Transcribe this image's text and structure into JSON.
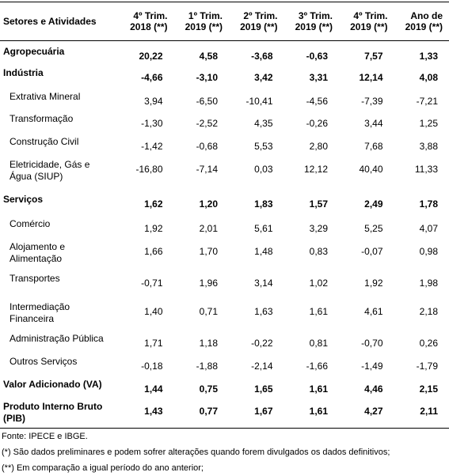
{
  "table": {
    "header": [
      {
        "lines": [
          "Setores e Atividades"
        ]
      },
      {
        "lines": [
          "4º Trim.",
          "2018 (**)"
        ]
      },
      {
        "lines": [
          "1º Trim.",
          "2019 (**)"
        ]
      },
      {
        "lines": [
          "2º Trim.",
          "2019 (**)"
        ]
      },
      {
        "lines": [
          "3º Trim.",
          "2019 (**)"
        ]
      },
      {
        "lines": [
          "4º Trim.",
          "2019 (**)"
        ]
      },
      {
        "lines": [
          "Ano de",
          "2019 (**)"
        ]
      }
    ],
    "rows": [
      {
        "label": "Agropecuária",
        "bold": true,
        "values": [
          "20,22",
          "4,58",
          "-3,68",
          "-0,63",
          "7,57",
          "1,33"
        ]
      },
      {
        "label": "Indústria",
        "bold": true,
        "values": [
          "-4,66",
          "-3,10",
          "3,42",
          "3,31",
          "12,14",
          "4,08"
        ]
      },
      {
        "label": "Extrativa Mineral",
        "bold": false,
        "values": [
          "3,94",
          "-6,50",
          "-10,41",
          "-4,56",
          "-7,39",
          "-7,21"
        ]
      },
      {
        "label": "Transformação",
        "bold": false,
        "values": [
          "-1,30",
          "-2,52",
          "4,35",
          "-0,26",
          "3,44",
          "1,25"
        ]
      },
      {
        "label": "Construção Civil",
        "bold": false,
        "values": [
          "-1,42",
          "-0,68",
          "5,53",
          "2,80",
          "7,68",
          "3,88"
        ]
      },
      {
        "label": "Eletricidade, Gás e Água (SIUP)",
        "bold": false,
        "values": [
          "-16,80",
          "-7,14",
          "0,03",
          "12,12",
          "40,40",
          "11,33"
        ]
      },
      {
        "label": "Serviços",
        "bold": true,
        "values": [
          "1,62",
          "1,20",
          "1,83",
          "1,57",
          "2,49",
          "1,78"
        ]
      },
      {
        "label": "Comércio",
        "bold": false,
        "values": [
          "1,92",
          "2,01",
          "5,61",
          "3,29",
          "5,25",
          "4,07"
        ]
      },
      {
        "label": "Alojamento e Alimentação",
        "bold": false,
        "values": [
          "1,66",
          "1,70",
          "1,48",
          "0,83",
          "-0,07",
          "0,98"
        ]
      },
      {
        "label": "Transportes",
        "bold": false,
        "values": [
          "-0,71",
          "1,96",
          "3,14",
          "1,02",
          "1,92",
          "1,98"
        ]
      },
      {
        "label": "Intermediação Financeira",
        "bold": false,
        "values": [
          "1,40",
          "0,71",
          "1,63",
          "1,61",
          "4,61",
          "2,18"
        ]
      },
      {
        "label": "Administração Pública",
        "bold": false,
        "values": [
          "1,71",
          "1,18",
          "-0,22",
          "0,81",
          "-0,70",
          "0,26"
        ]
      },
      {
        "label": "Outros Serviços",
        "bold": false,
        "values": [
          "-0,18",
          "-1,88",
          "-2,14",
          "-1,66",
          "-1,49",
          "-1,79"
        ]
      },
      {
        "label": "Valor Adicionado (VA)",
        "bold": true,
        "values": [
          "1,44",
          "0,75",
          "1,65",
          "1,61",
          "4,46",
          "2,15"
        ]
      },
      {
        "label": "Produto Interno Bruto (PIB)",
        "bold": true,
        "values": [
          "1,43",
          "0,77",
          "1,67",
          "1,61",
          "4,27",
          "2,11"
        ]
      }
    ]
  },
  "footer": [
    "Fonte: IPECE e IBGE.",
    "(*) São dados preliminares e podem sofrer alterações quando forem divulgados os dados definitivos;",
    "(**) Em comparação a igual período do ano anterior;"
  ]
}
